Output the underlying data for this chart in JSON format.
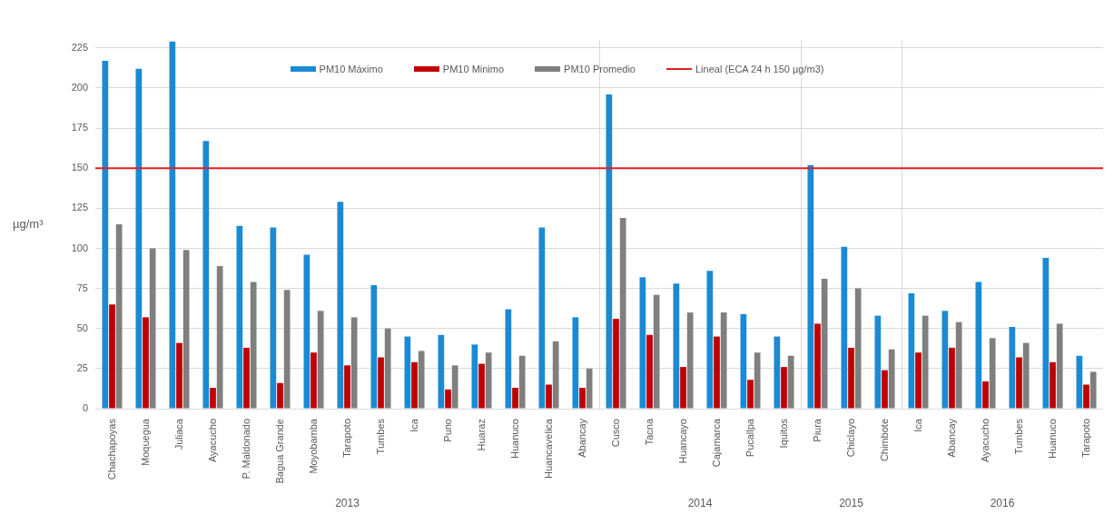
{
  "chart_data": [
    {
      "type": "bar",
      "xlabel": "2013",
      "ylabel": "µg/m³",
      "categories": [
        "Chachapoyas",
        "Moquegua",
        "Juliaca",
        "Ayacucho",
        "P. Maldonado",
        "Bagua Grande",
        "Moyobamba",
        "Tarapoto",
        "Tumbes",
        "Ica",
        "Puno",
        "Huaraz",
        "Huanuco",
        "Huancavelica",
        "Abancay"
      ],
      "series": [
        {
          "name": "PM10 Máximo",
          "color": "#1a8ad4",
          "values": [
            217,
            212,
            229,
            167,
            114,
            113,
            96,
            129,
            77,
            45,
            46,
            40,
            62,
            113,
            57
          ]
        },
        {
          "name": "PM10 Minimo",
          "color": "#c00000",
          "values": [
            65,
            57,
            41,
            13,
            38,
            16,
            35,
            27,
            32,
            29,
            12,
            28,
            13,
            15,
            13
          ]
        },
        {
          "name": "PM10 Promedio",
          "color": "#7f7f7f",
          "values": [
            115,
            100,
            99,
            89,
            79,
            74,
            61,
            57,
            50,
            36,
            27,
            35,
            33,
            42,
            25
          ]
        }
      ],
      "ylim": [
        0,
        230
      ],
      "yticks": [
        0,
        25,
        50,
        75,
        100,
        125,
        150,
        175,
        200,
        225
      ],
      "grid": "y",
      "legend": "top",
      "ref_lines": [
        {
          "axis": "y",
          "value": 150,
          "label": "Lineal (ECA 24 h 150 µg/m3)",
          "color": "#e02020"
        }
      ]
    },
    {
      "type": "bar",
      "xlabel": "2014",
      "categories": [
        "Cusco",
        "Tacna",
        "Huancayo",
        "Cajamarca",
        "Pucallpa",
        "Iquitos"
      ],
      "series": [
        {
          "color": "#1a8ad4",
          "values": [
            196,
            82,
            78,
            86,
            59,
            45
          ]
        },
        {
          "color": "#c00000",
          "values": [
            56,
            46,
            26,
            45,
            18,
            26
          ]
        },
        {
          "color": "#7f7f7f",
          "values": [
            119,
            71,
            60,
            60,
            35,
            33
          ]
        }
      ],
      "ylim": [
        0,
        230
      ],
      "yticks": [
        0,
        25,
        50,
        75,
        100,
        125,
        150,
        175,
        200,
        225
      ],
      "grid": "y",
      "tick_labels": "x",
      "ref_lines": [
        {
          "axis": "y",
          "value": 150,
          "color": "#e02020"
        }
      ]
    },
    {
      "type": "bar",
      "xlabel": "2015",
      "categories": [
        "Piura",
        "Chiclayo",
        "Chimbote"
      ],
      "series": [
        {
          "color": "#1a8ad4",
          "values": [
            152,
            101,
            58
          ]
        },
        {
          "color": "#c00000",
          "values": [
            53,
            38,
            24
          ]
        },
        {
          "color": "#7f7f7f",
          "values": [
            81,
            75,
            37
          ]
        }
      ],
      "ylim": [
        0,
        230
      ],
      "yticks": [
        0,
        25,
        50,
        75,
        100,
        125,
        150,
        175,
        200,
        225
      ],
      "grid": "y",
      "tick_labels": "x",
      "ref_lines": [
        {
          "axis": "y",
          "value": 150,
          "color": "#e02020"
        }
      ]
    },
    {
      "type": "bar",
      "xlabel": "2016",
      "categories": [
        "Ica",
        "Abancay",
        "Ayacucho",
        "Tumbes",
        "Huanuco",
        "Tarapoto"
      ],
      "series": [
        {
          "color": "#1a8ad4",
          "values": [
            72,
            61,
            79,
            51,
            94,
            33
          ]
        },
        {
          "color": "#c00000",
          "values": [
            35,
            38,
            17,
            32,
            29,
            15
          ]
        },
        {
          "color": "#7f7f7f",
          "values": [
            58,
            54,
            44,
            41,
            53,
            23
          ]
        }
      ],
      "ylim": [
        0,
        230
      ],
      "yticks": [
        0,
        25,
        50,
        75,
        100,
        125,
        150,
        175,
        200,
        225
      ],
      "grid": "y",
      "tick_labels": "x",
      "ref_lines": [
        {
          "axis": "y",
          "value": 150,
          "color": "#e02020"
        }
      ]
    }
  ]
}
